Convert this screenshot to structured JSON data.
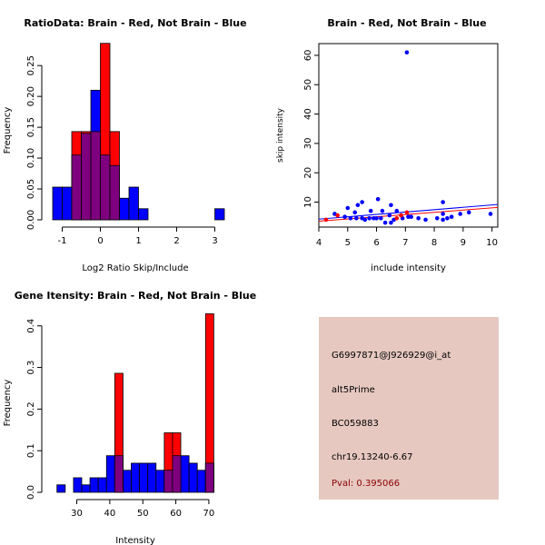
{
  "colors": {
    "red": "#ff0000",
    "blue": "#0000ff",
    "overlap": "#7f007f",
    "trend_red": "#ff0000",
    "trend_blue": "#0000ff",
    "info_bg": "#e6c8c0",
    "pval": "#8b0000"
  },
  "chart_data": [
    {
      "id": "ratio",
      "type": "bar",
      "title": "RatioData: Brain - Red, Not Brain - Blue",
      "xlabel": "Log2 Ratio Skip/Include",
      "ylabel": "Frequency",
      "xlim": [
        -1.25,
        3.25
      ],
      "ylim": [
        0,
        0.29
      ],
      "xticks": [
        -1,
        0,
        1,
        2,
        3
      ],
      "yticks": [
        0.0,
        0.05,
        0.1,
        0.15,
        0.2,
        0.25
      ],
      "ytick_labels": [
        "0.00",
        "0.05",
        "0.10",
        "0.15",
        "0.20",
        "0.25"
      ],
      "series": [
        {
          "name": "Not Brain",
          "color": "blue",
          "bins": [
            [
              -1.25,
              -1.0,
              0.053
            ],
            [
              -1.0,
              -0.75,
              0.053
            ],
            [
              -0.75,
              -0.5,
              0.105
            ],
            [
              -0.5,
              -0.25,
              0.14
            ],
            [
              -0.25,
              0.0,
              0.21
            ],
            [
              0.0,
              0.25,
              0.105
            ],
            [
              0.25,
              0.5,
              0.088
            ],
            [
              0.5,
              0.75,
              0.035
            ],
            [
              0.75,
              1.0,
              0.053
            ],
            [
              1.0,
              1.25,
              0.018
            ],
            [
              3.0,
              3.25,
              0.018
            ]
          ]
        },
        {
          "name": "Brain",
          "color": "red",
          "bins": [
            [
              -0.75,
              -0.5,
              0.143
            ],
            [
              -0.5,
              -0.25,
              0.143
            ],
            [
              -0.25,
              0.0,
              0.143
            ],
            [
              0.0,
              0.25,
              0.286
            ],
            [
              0.25,
              0.5,
              0.143
            ]
          ]
        }
      ]
    },
    {
      "id": "scatter",
      "type": "scatter",
      "title": "Brain - Red, Not Brain - Blue",
      "xlabel": "include intensity",
      "ylabel": "skip intensity",
      "xlim": [
        4,
        10.2
      ],
      "ylim": [
        1.5,
        64
      ],
      "xticks": [
        4,
        5,
        6,
        7,
        8,
        9,
        10
      ],
      "yticks": [
        10,
        20,
        30,
        40,
        50,
        60
      ],
      "points_blue": [
        [
          7.05,
          61
        ],
        [
          6.5,
          9
        ],
        [
          6.05,
          11
        ],
        [
          5.5,
          10
        ],
        [
          5.35,
          9
        ],
        [
          5.0,
          8
        ],
        [
          4.55,
          6
        ],
        [
          5.25,
          6.5
        ],
        [
          5.8,
          7
        ],
        [
          6.2,
          7
        ],
        [
          6.45,
          5.5
        ],
        [
          6.7,
          7
        ],
        [
          5.1,
          4.5
        ],
        [
          5.3,
          4.5
        ],
        [
          5.5,
          4.5
        ],
        [
          5.6,
          4
        ],
        [
          5.75,
          4.5
        ],
        [
          5.9,
          4.5
        ],
        [
          6.0,
          4.5
        ],
        [
          6.15,
          4.5
        ],
        [
          6.3,
          3
        ],
        [
          6.5,
          3
        ],
        [
          6.6,
          4
        ],
        [
          6.9,
          4.5
        ],
        [
          7.1,
          5
        ],
        [
          7.2,
          5
        ],
        [
          7.45,
          4.5
        ],
        [
          7.7,
          4
        ],
        [
          8.1,
          4.5
        ],
        [
          8.3,
          4
        ],
        [
          8.45,
          4.5
        ],
        [
          8.6,
          5
        ],
        [
          8.3,
          10
        ],
        [
          8.3,
          6
        ],
        [
          8.9,
          6
        ],
        [
          9.2,
          6.5
        ],
        [
          9.95,
          6
        ],
        [
          4.9,
          5
        ]
      ],
      "points_red": [
        [
          4.25,
          4
        ],
        [
          4.65,
          5.5
        ],
        [
          7.05,
          6.5
        ],
        [
          6.85,
          5.5
        ],
        [
          6.7,
          4.5
        ]
      ],
      "trend_red": [
        [
          4,
          3.5
        ],
        [
          10.2,
          8.2
        ]
      ],
      "trend_blue": [
        [
          4,
          4.2
        ],
        [
          10.2,
          9.2
        ]
      ]
    },
    {
      "id": "gene",
      "type": "bar",
      "title": "Gene Itensity: Brain - Red, Not Brain - Blue",
      "xlabel": "Intensity",
      "ylabel": "Frequency",
      "xlim": [
        22.7,
        74.7
      ],
      "ylim": [
        0,
        0.43
      ],
      "xticks": [
        30,
        40,
        50,
        60,
        70
      ],
      "yticks": [
        0.0,
        0.1,
        0.2,
        0.3,
        0.4
      ],
      "ytick_labels": [
        "0.0",
        "0.1",
        "0.2",
        "0.3",
        "0.4"
      ],
      "series": [
        {
          "name": "Not Brain",
          "color": "blue",
          "bins": [
            [
              24,
              26.5,
              0.018
            ],
            [
              26.5,
              29,
              0.0
            ],
            [
              29,
              31.5,
              0.035
            ],
            [
              31.5,
              34,
              0.018
            ],
            [
              34,
              36.5,
              0.035
            ],
            [
              36.5,
              39,
              0.035
            ],
            [
              39,
              41.5,
              0.088
            ],
            [
              41.5,
              44,
              0.088
            ],
            [
              44,
              46.5,
              0.053
            ],
            [
              46.5,
              49,
              0.07
            ],
            [
              49,
              51.5,
              0.07
            ],
            [
              51.5,
              54,
              0.07
            ],
            [
              54,
              56.5,
              0.053
            ],
            [
              56.5,
              59,
              0.053
            ],
            [
              59,
              61.5,
              0.088
            ],
            [
              61.5,
              64,
              0.088
            ],
            [
              64,
              66.5,
              0.07
            ],
            [
              66.5,
              69,
              0.053
            ],
            [
              69,
              71.5,
              0.07
            ]
          ]
        },
        {
          "name": "Brain",
          "color": "red",
          "bins": [
            [
              41.5,
              44,
              0.286
            ],
            [
              56.5,
              59,
              0.143
            ],
            [
              59,
              61.5,
              0.143
            ],
            [
              69,
              71.5,
              0.429
            ]
          ]
        }
      ]
    }
  ],
  "info": {
    "probe": "G6997871@J926929@i_at",
    "event": "alt5Prime",
    "accession": "BC059883",
    "location": "chr19.13240-6.67",
    "pval": "Pval: 0.395066"
  }
}
